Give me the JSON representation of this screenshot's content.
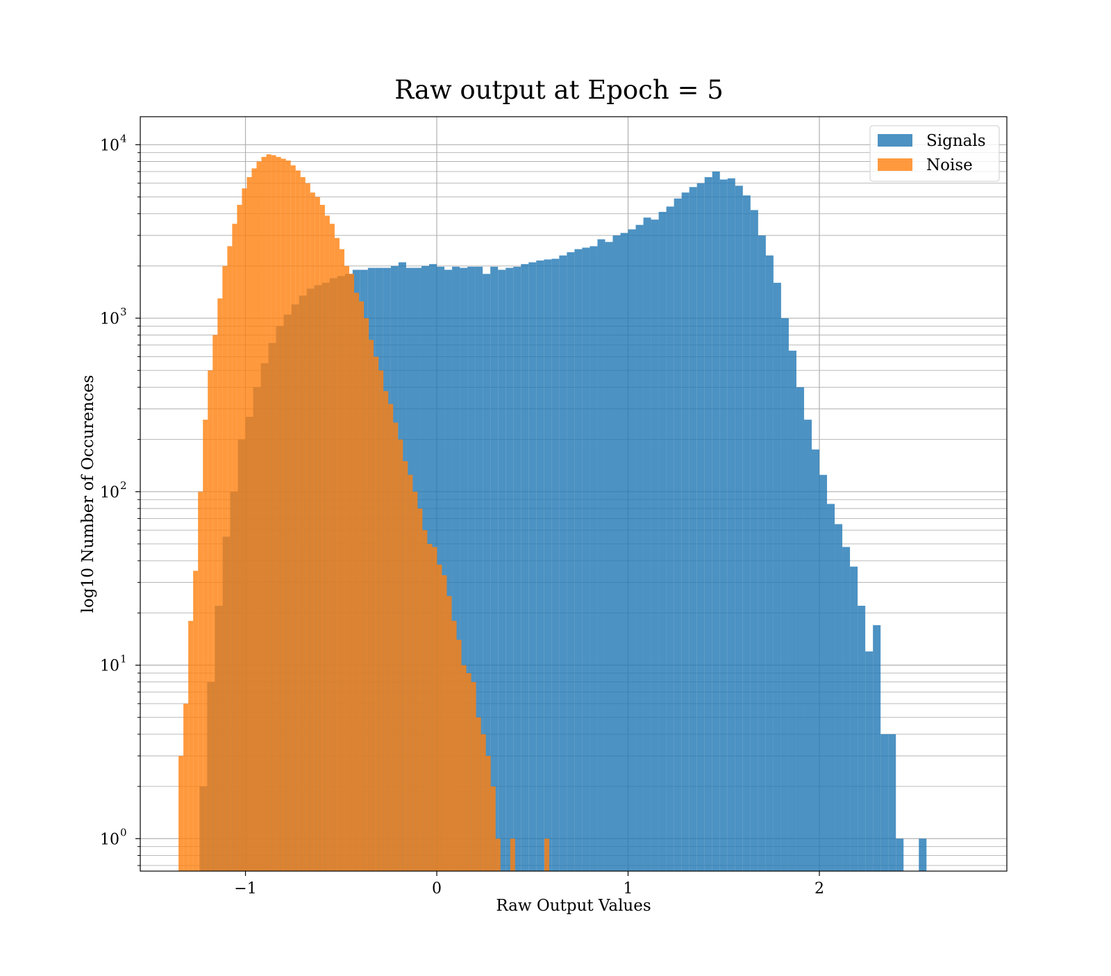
{
  "chart_data": {
    "type": "bar",
    "title": "Raw output at Epoch = 5",
    "xlabel": "Raw Output Values",
    "ylabel": "log10 Number of Occurences",
    "xlim": [
      -1.55,
      2.98
    ],
    "ylim": [
      0.65,
      14500
    ],
    "yscale": "log",
    "grid": true,
    "legend_position": "top-right",
    "x_ticks": [
      {
        "value": -1,
        "label": "−1"
      },
      {
        "value": 0,
        "label": "0"
      },
      {
        "value": 1,
        "label": "1"
      },
      {
        "value": 2,
        "label": "2"
      }
    ],
    "y_ticks": [
      {
        "value": 1,
        "base": "10",
        "exp": "0"
      },
      {
        "value": 10,
        "base": "10",
        "exp": "1"
      },
      {
        "value": 100,
        "base": "10",
        "exp": "2"
      },
      {
        "value": 1000,
        "base": "10",
        "exp": "3"
      },
      {
        "value": 10000,
        "base": "10",
        "exp": "4"
      }
    ],
    "series": [
      {
        "name": "Signals",
        "color": "#1f77b4",
        "opacity": 0.8,
        "bin_start": -1.24,
        "bin_width": 0.04,
        "values": [
          2,
          8,
          22,
          55,
          100,
          200,
          270,
          400,
          550,
          720,
          900,
          1050,
          1200,
          1350,
          1480,
          1550,
          1600,
          1700,
          1750,
          1800,
          1900,
          1900,
          1950,
          1950,
          1950,
          2000,
          2100,
          1950,
          1950,
          2000,
          2050,
          1980,
          1900,
          1980,
          1950,
          1980,
          1980,
          1800,
          1980,
          1900,
          1950,
          1980,
          2050,
          2100,
          2150,
          2180,
          2200,
          2300,
          2400,
          2500,
          2550,
          2600,
          2850,
          2750,
          3000,
          3100,
          3250,
          3450,
          3800,
          3700,
          4100,
          4400,
          4900,
          5300,
          5700,
          6000,
          6500,
          7000,
          6300,
          6400,
          5800,
          5100,
          4200,
          3000,
          2300,
          1600,
          1000,
          650,
          400,
          260,
          175,
          125,
          85,
          65,
          48,
          37,
          22,
          12,
          17,
          4,
          4,
          1,
          0,
          0,
          1
        ]
      },
      {
        "name": "Noise",
        "color": "#ff7f0e",
        "opacity": 0.8,
        "bin_start": -1.35,
        "bin_width": 0.0255,
        "values": [
          3,
          6,
          18,
          35,
          100,
          260,
          500,
          800,
          1300,
          2000,
          2600,
          3500,
          4500,
          5600,
          6500,
          7300,
          8000,
          8500,
          8800,
          8700,
          8500,
          8300,
          8100,
          7600,
          7100,
          6500,
          6000,
          5300,
          5000,
          4500,
          3900,
          3500,
          2900,
          2500,
          2000,
          1800,
          1400,
          1250,
          1000,
          750,
          600,
          500,
          380,
          320,
          250,
          200,
          150,
          125,
          100,
          80,
          60,
          50,
          48,
          38,
          33,
          25,
          18,
          14,
          10,
          9,
          8,
          5,
          4,
          3,
          2,
          1,
          0,
          0,
          1,
          0,
          0,
          0,
          0,
          0,
          0,
          1
        ]
      }
    ]
  }
}
